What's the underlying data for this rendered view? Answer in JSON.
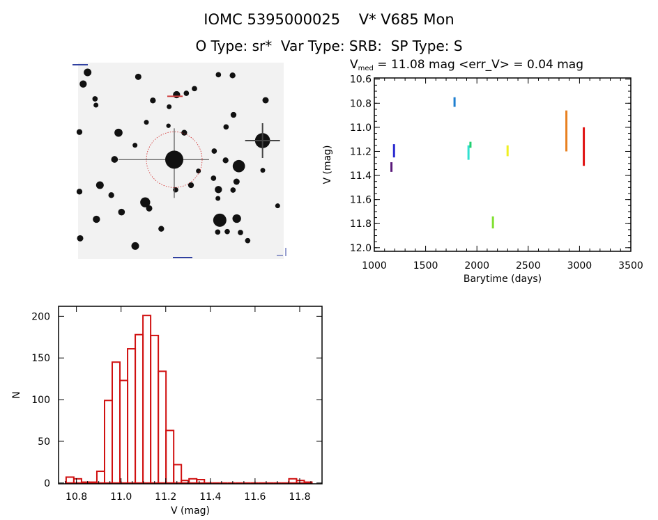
{
  "title": "IOMC 5395000025    V* V685 Mon",
  "subtitle": "O Type: sr*  Var Type: SRB:  SP Type: S",
  "image": {
    "description_label": "finding chart"
  },
  "chart_data": [
    {
      "type": "scatter",
      "title_prefix": "V",
      "title_sub": "med",
      "title_rest": " = 11.08 mag <err_V> = 0.04 mag",
      "xlabel": "Barytime (days)",
      "ylabel": "V (mag)",
      "xlim": [
        1000,
        3500
      ],
      "ylim": [
        12.03,
        10.59
      ],
      "y_inverted": true,
      "xticks": [
        1000,
        1500,
        2000,
        2500,
        3000,
        3500
      ],
      "yticks": [
        10.6,
        10.8,
        11.0,
        11.2,
        11.4,
        11.6,
        11.8,
        12.0
      ],
      "ytick_labels": [
        "10.6",
        "10.8",
        "11.0",
        "11.2",
        "11.4",
        "11.6",
        "11.8",
        "12.0"
      ],
      "series": [
        {
          "color": "#5a1a7a",
          "x": 1167,
          "v_min": 11.29,
          "v_max": 11.37
        },
        {
          "color": "#2a2ad0",
          "x": 1192,
          "v_min": 11.14,
          "v_max": 11.25
        },
        {
          "color": "#1e7fd0",
          "x": 1782,
          "v_min": 10.75,
          "v_max": 10.83
        },
        {
          "color": "#30e0d0",
          "x": 1918,
          "v_min": 11.15,
          "v_max": 11.27
        },
        {
          "color": "#20d070",
          "x": 1937,
          "v_min": 11.12,
          "v_max": 11.17
        },
        {
          "color": "#80e030",
          "x": 2156,
          "v_min": 11.74,
          "v_max": 11.84
        },
        {
          "color": "#f0f020",
          "x": 2299,
          "v_min": 11.15,
          "v_max": 11.24
        },
        {
          "color": "#e88020",
          "x": 2872,
          "v_min": 10.86,
          "v_max": 11.2
        },
        {
          "color": "#e01010",
          "x": 3042,
          "v_min": 11.0,
          "v_max": 11.32
        }
      ]
    },
    {
      "type": "bar",
      "subtype": "histogram",
      "xlabel": "V (mag)",
      "ylabel": "N",
      "xlim": [
        10.72,
        11.9
      ],
      "ylim": [
        -1,
        212
      ],
      "xticks": [
        10.8,
        11.0,
        11.2,
        11.4,
        11.6,
        11.8
      ],
      "xtick_labels": [
        "10.8",
        "11.0",
        "11.2",
        "11.4",
        "11.6",
        "11.8"
      ],
      "yticks": [
        0,
        50,
        100,
        150,
        200
      ],
      "bar_color": "#d01010",
      "bin_start": 10.754,
      "bin_width": 0.0344,
      "counts": [
        7,
        5,
        1,
        1,
        14,
        99,
        145,
        123,
        161,
        178,
        201,
        177,
        134,
        63,
        22,
        3,
        5,
        4,
        0,
        0,
        0,
        0,
        0,
        0,
        0,
        0,
        0,
        0,
        0,
        5,
        3,
        1
      ]
    }
  ]
}
